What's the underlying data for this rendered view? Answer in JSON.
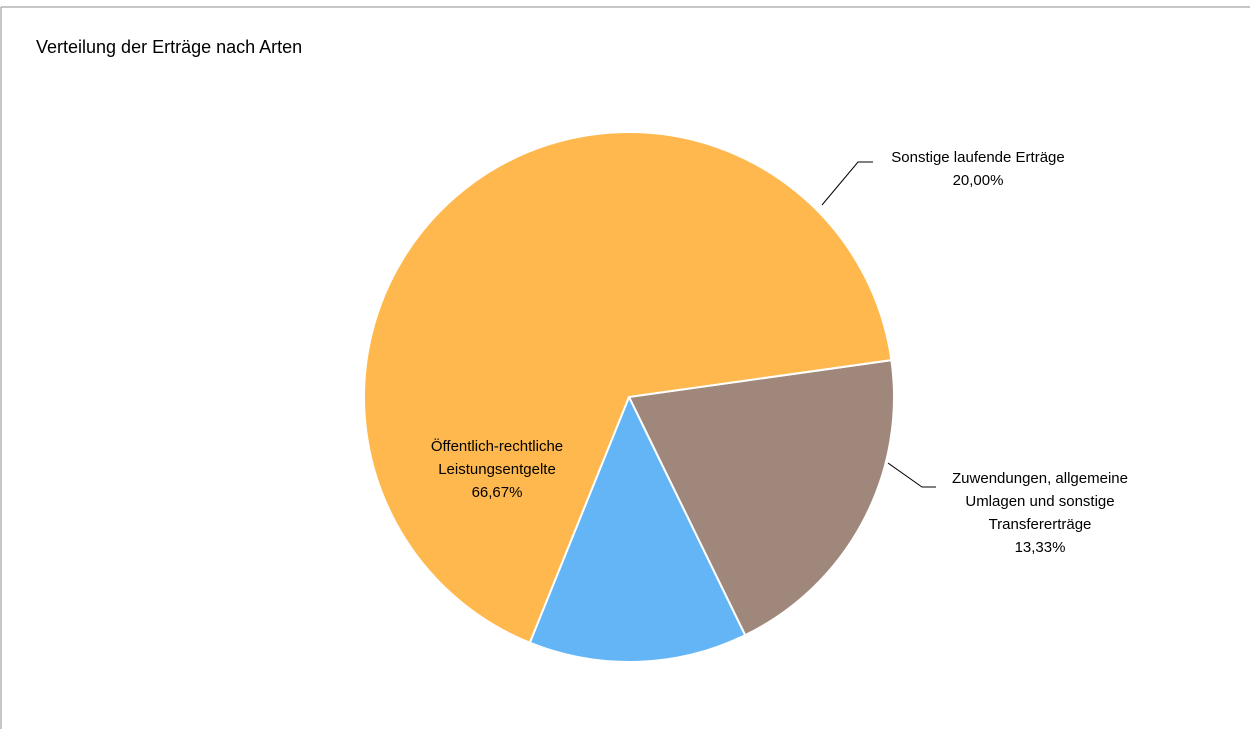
{
  "chart_data": {
    "type": "pie",
    "title": "Verteilung der Erträge nach Arten",
    "slices": [
      {
        "label_lines": [
          "Sonstige laufende Erträge"
        ],
        "percent_label": "20,00%",
        "value": 20.0,
        "color": "#A0877C"
      },
      {
        "label_lines": [
          "Zuwendungen, allgemeine",
          "Umlagen und sonstige",
          "Transfererträge"
        ],
        "percent_label": "13,33%",
        "value": 13.33,
        "color": "#63B5F5"
      },
      {
        "label_lines": [
          "Öffentlich-rechtliche",
          "Leistungsentgelte"
        ],
        "percent_label": "66,67%",
        "value": 66.67,
        "color": "#FFB84D"
      }
    ],
    "legend": "none",
    "start_angle_deg": 82
  }
}
